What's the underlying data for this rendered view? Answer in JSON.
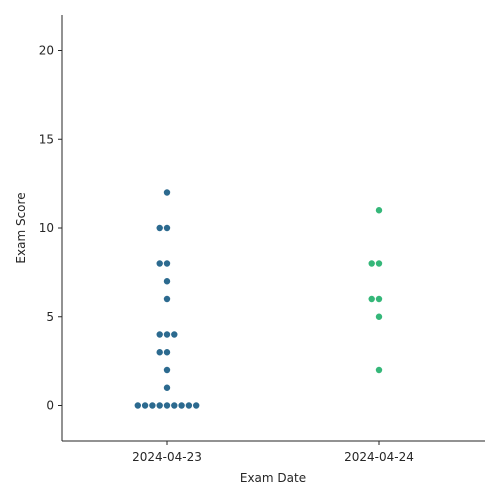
{
  "chart_data": {
    "type": "scatter",
    "subtype": "swarm",
    "xlabel": "Exam Date",
    "ylabel": "Exam Score",
    "categories": [
      "2024-04-23",
      "2024-04-24"
    ],
    "ylim": [
      -2,
      22
    ],
    "yticks": [
      0,
      5,
      10,
      15,
      20
    ],
    "grid": false,
    "legend": "none",
    "colors": [
      "#2c6a8f",
      "#35b779"
    ],
    "series": [
      {
        "category": "2024-04-23",
        "values": [
          0,
          0,
          0,
          0,
          0,
          0,
          0,
          0,
          0,
          1,
          2,
          3,
          3,
          4,
          4,
          4,
          6,
          7,
          8,
          8,
          10,
          10,
          12
        ]
      },
      {
        "category": "2024-04-24",
        "values": [
          2,
          5,
          6,
          6,
          8,
          8,
          11
        ]
      }
    ]
  }
}
